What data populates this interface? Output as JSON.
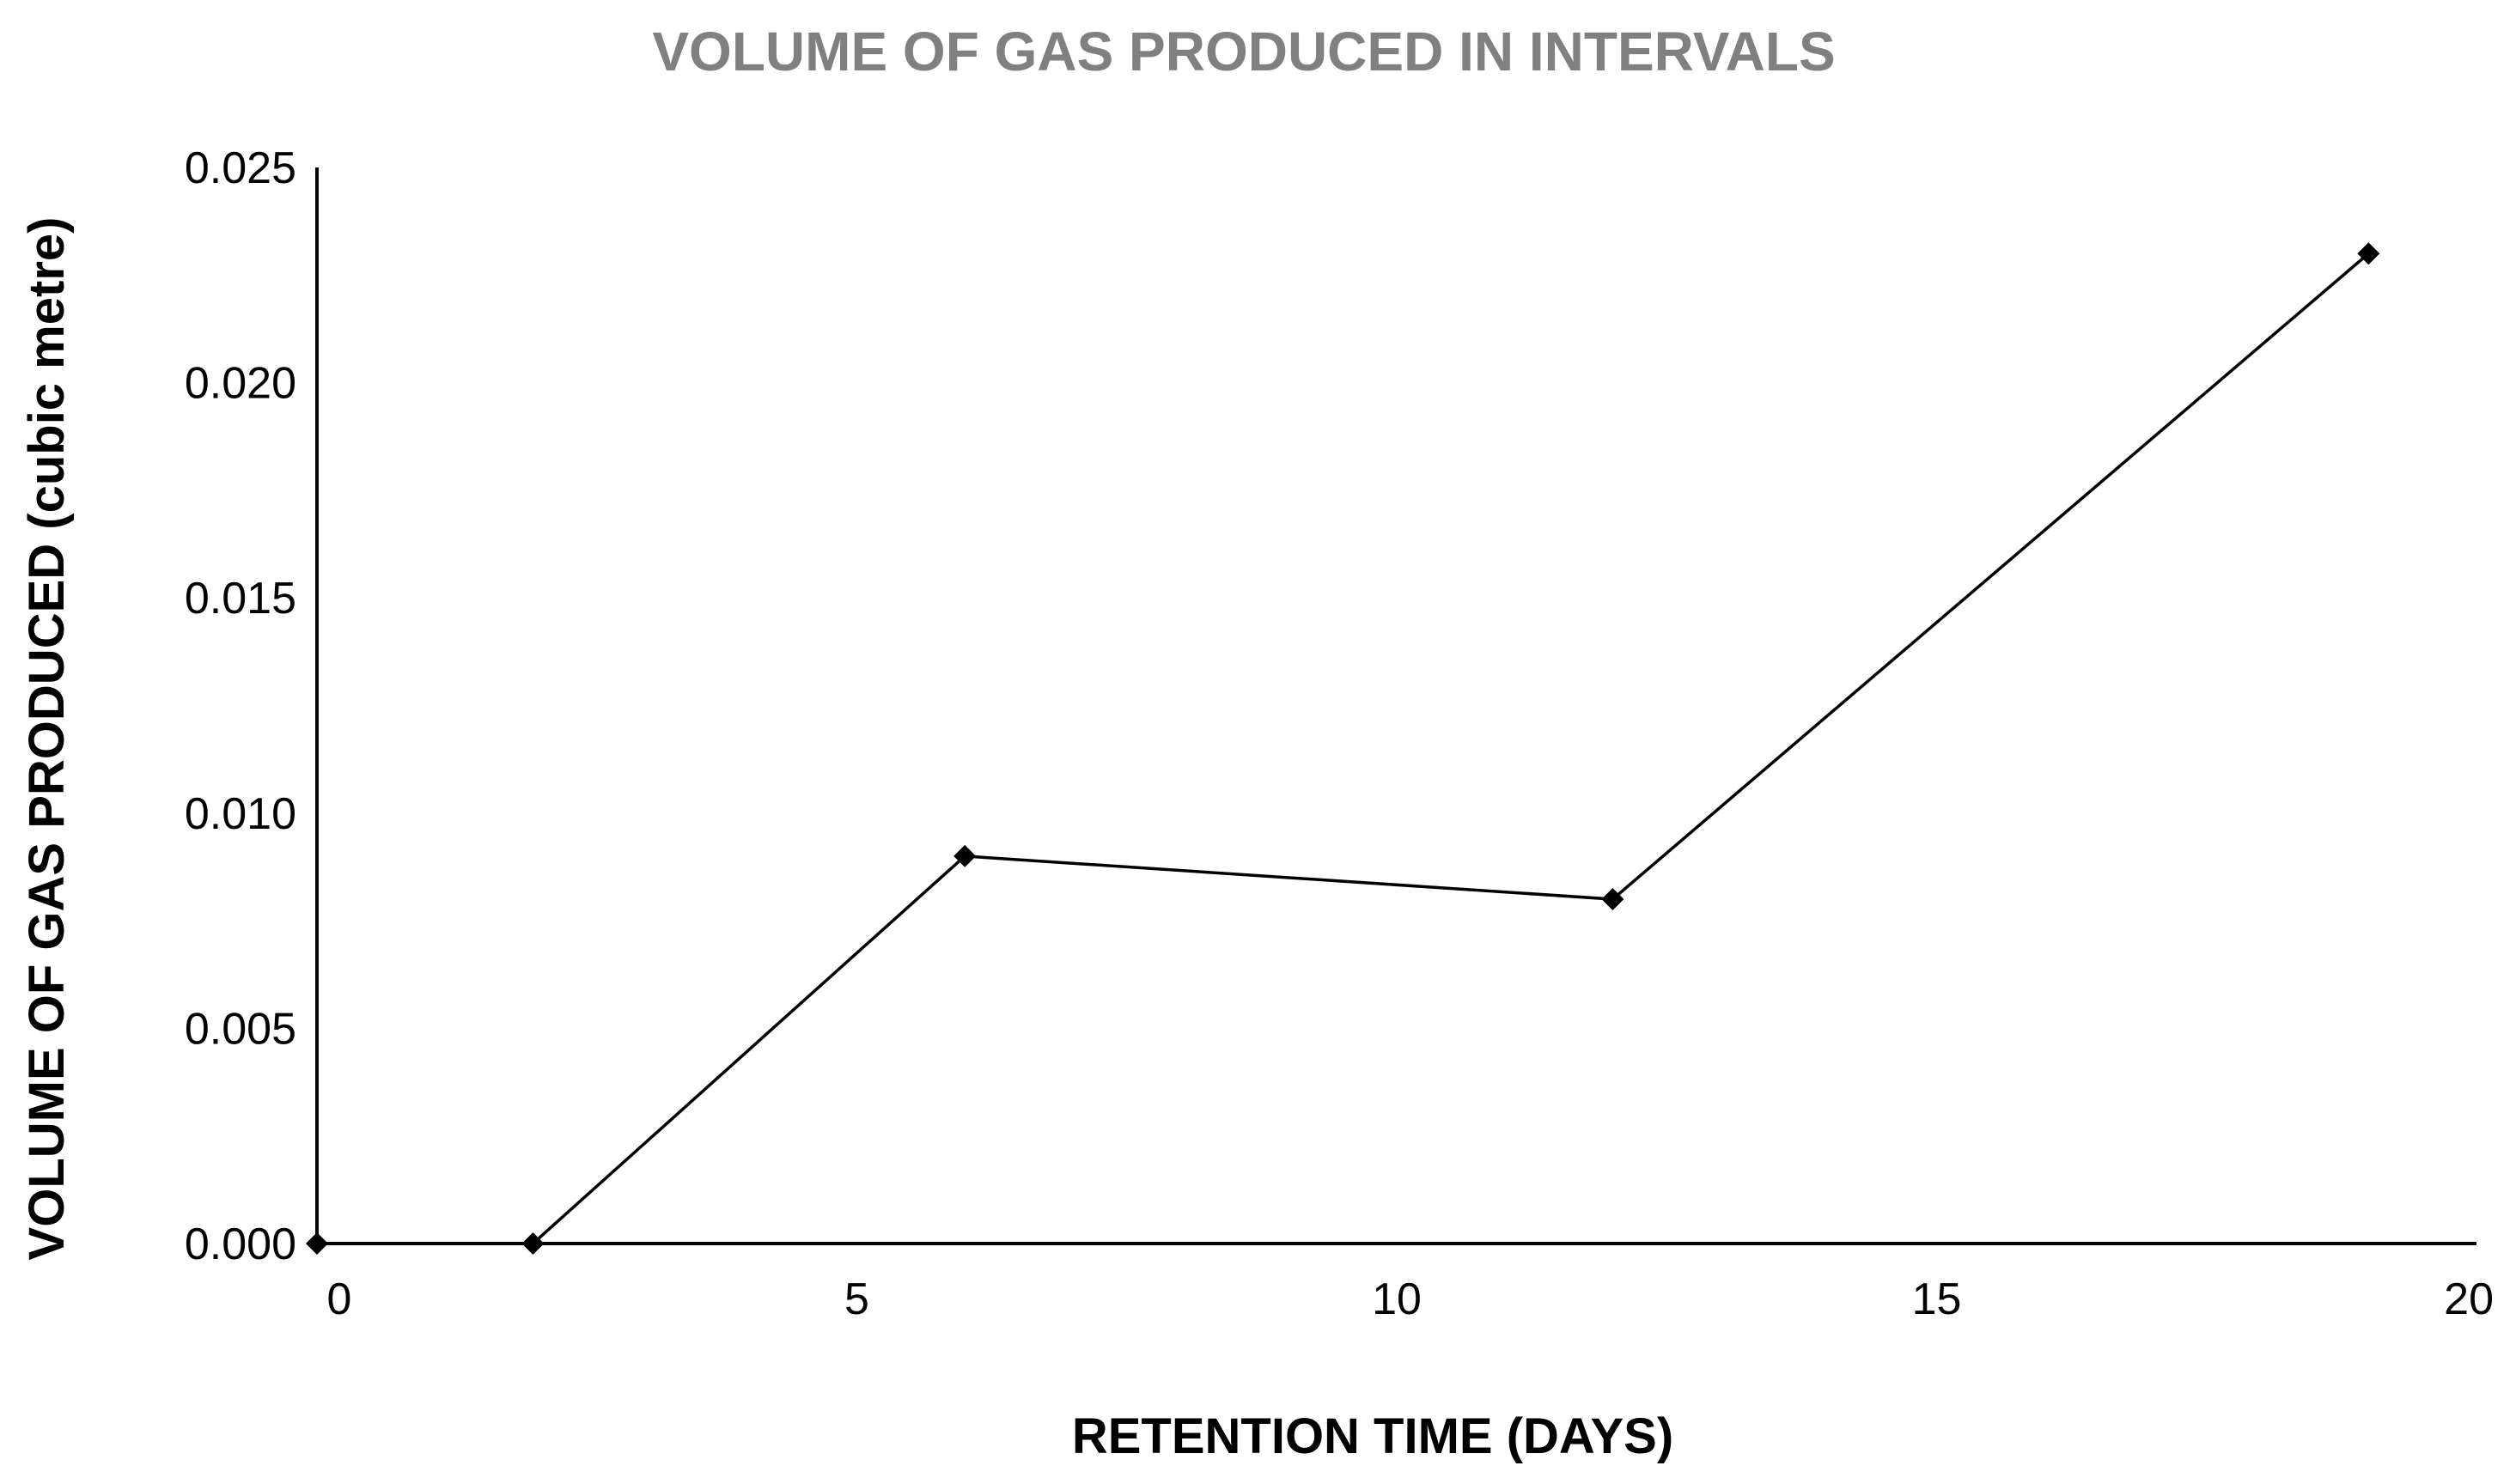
{
  "chart_data": {
    "type": "line",
    "title": "VOLUME OF GAS PRODUCED IN INTERVALS",
    "xlabel": "RETENTION TIME (DAYS)",
    "ylabel": "VOLUME OF GAS PRODUCED (cubic metre)",
    "xlim": [
      0,
      20
    ],
    "ylim": [
      0,
      0.025
    ],
    "x_ticks": [
      0,
      5,
      10,
      15,
      20
    ],
    "x_tick_labels": [
      "0",
      "5",
      "10",
      "15",
      "20"
    ],
    "y_ticks": [
      0,
      0.005,
      0.01,
      0.015,
      0.02,
      0.025
    ],
    "y_tick_labels": [
      "0.000",
      "0.005",
      "0.010",
      "0.015",
      "0.020",
      "0.025"
    ],
    "grid": false,
    "legend": "none",
    "series": [
      {
        "x": [
          0,
          2,
          6,
          12,
          19
        ],
        "values": [
          0,
          0,
          0.009,
          0.008,
          0.023
        ],
        "color": "#000000",
        "marker": "diamond"
      }
    ]
  }
}
